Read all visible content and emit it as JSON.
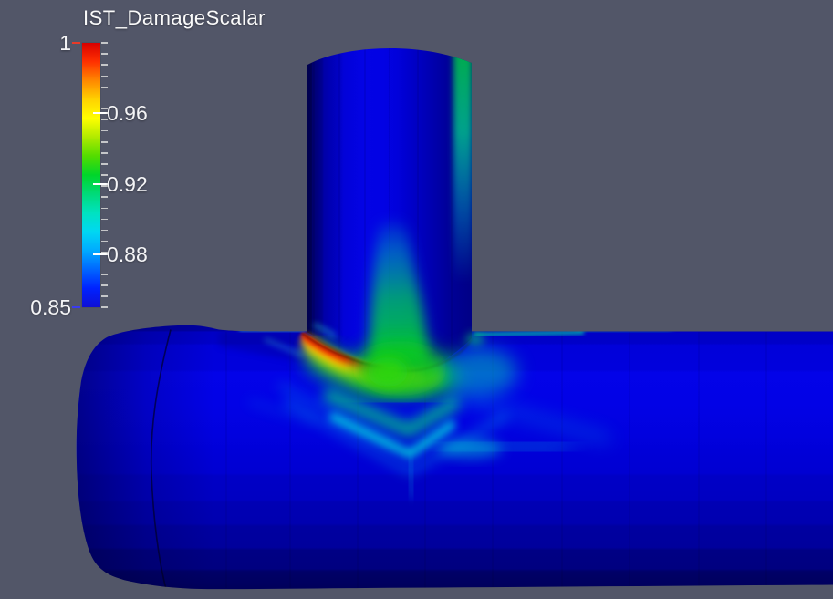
{
  "app": {
    "background_color": "#525668"
  },
  "legend": {
    "title": "IST_DamageScalar",
    "minor_tick_count": 24,
    "minor_tick_color": "#d9d9d9",
    "label_color": "#f4f4f6",
    "tick_labels": [
      {
        "value": "1",
        "side": "left",
        "frac": 0.0,
        "tick_color": "#e83a28"
      },
      {
        "value": "0.96",
        "side": "right",
        "frac": 0.2667,
        "tick_color": "#ffffff"
      },
      {
        "value": "0.92",
        "side": "right",
        "frac": 0.5333,
        "tick_color": "#ffffff"
      },
      {
        "value": "0.88",
        "side": "right",
        "frac": 0.8,
        "tick_color": "#ffffff"
      },
      {
        "value": "0.85",
        "side": "left",
        "frac": 1.0,
        "tick_color": "#3a3af0"
      }
    ],
    "range": {
      "min": 0.85,
      "max": 1.0
    },
    "colormap_top_to_bottom": [
      "#d80000",
      "#ff3000",
      "#ff8800",
      "#ffd200",
      "#ffff00",
      "#b0ea00",
      "#52dc00",
      "#00d52a",
      "#00da78",
      "#00e2c0",
      "#00d8f2",
      "#00aaff",
      "#0066ff",
      "#0022ff",
      "#0f0fd4"
    ]
  },
  "scene": {
    "field_colors": {
      "pipe_blue_bright": "#0202e6",
      "pipe_blue_dark": "#00005a",
      "hotspot_dark_edge": "#8c1400",
      "hotspot_red": "#e02800",
      "hotspot_orange": "#ff7d00",
      "hotspot_yellow": "#ffd800",
      "hotspot_green": "#00c832",
      "chevron_cyan": "#00e4dc",
      "edge_streak_teal": "#00bfa6",
      "branch_edge_green": "#00b448"
    }
  }
}
